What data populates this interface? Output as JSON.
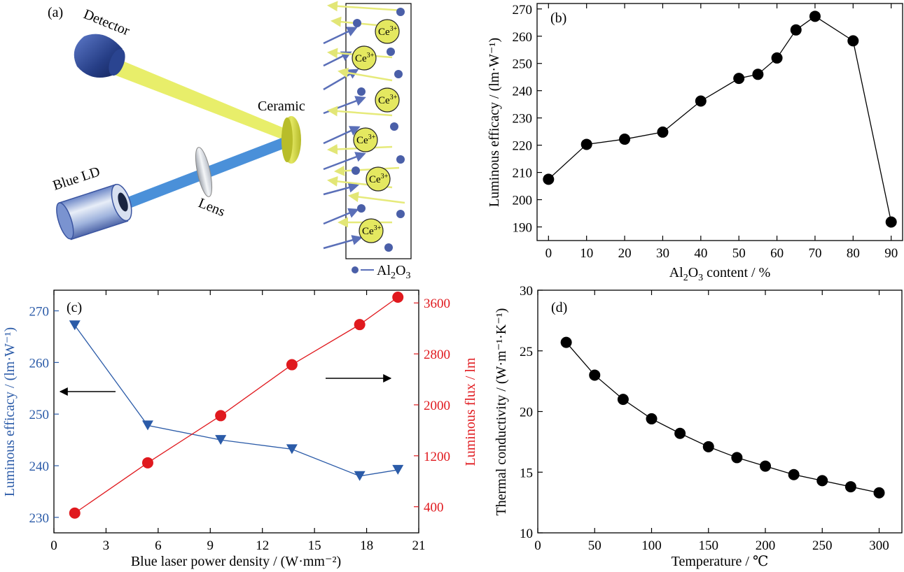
{
  "panel_a": {
    "letter": "(a)",
    "detector_label": "Detector",
    "ceramic_label": "Ceramic",
    "laser_label": "Blue LD",
    "lens_label": "Lens",
    "ion_label": "Ce",
    "ion_charge": "3+",
    "legend_formula": [
      "Al",
      "2",
      "O",
      "3"
    ],
    "colors": {
      "beam_yellow": "#e8ee6a",
      "beam_blue": "#4a90d9",
      "ion_fill": "#e4e860",
      "dot": "#4a5fa8",
      "arrow_blue": "#5a6fb8",
      "arrow_yellow": "#e6ea7a"
    }
  },
  "chart_data": [
    {
      "id": "b",
      "panel_letter": "(b)",
      "type": "line",
      "x": [
        0,
        10,
        20,
        30,
        40,
        50,
        55,
        60,
        65,
        70,
        80,
        90
      ],
      "y": [
        207.5,
        220.3,
        222.2,
        224.8,
        236.2,
        244.5,
        246.0,
        252.0,
        262.3,
        267.3,
        258.3,
        191.8
      ],
      "xlim": [
        -3,
        93
      ],
      "ylim": [
        185,
        272
      ],
      "xticks": [
        0,
        10,
        20,
        30,
        40,
        50,
        60,
        70,
        80,
        90
      ],
      "yticks": [
        190,
        200,
        210,
        220,
        230,
        240,
        250,
        260,
        270
      ],
      "xlabel": {
        "pre": "Al",
        "sub1": "2",
        "mid": "O",
        "sub2": "3",
        "post": " content / %"
      },
      "ylabel": "Luminous efficacy / (lm·W⁻¹)",
      "color": "#000000",
      "marker": "circle"
    },
    {
      "id": "c",
      "panel_letter": "(c)",
      "type": "line",
      "xlim": [
        0,
        21
      ],
      "xticks": [
        0,
        3,
        6,
        9,
        12,
        15,
        18,
        21
      ],
      "xlabel": "Blue laser power density / (W·mm⁻²)",
      "series": [
        {
          "axis": "left",
          "x": [
            1.2,
            5.4,
            9.6,
            13.7,
            17.6,
            19.8
          ],
          "y": [
            267.2,
            247.8,
            245.0,
            243.2,
            238.0,
            239.2
          ],
          "color": "#2b5ba8",
          "marker": "triangle-down"
        },
        {
          "axis": "right",
          "x": [
            1.2,
            5.4,
            9.6,
            13.7,
            17.6,
            19.8
          ],
          "y": [
            300,
            1090,
            1830,
            2630,
            3260,
            3690
          ],
          "color": "#e0191e",
          "marker": "circle"
        }
      ],
      "ylim_left": [
        227,
        274
      ],
      "yticks_left": [
        230,
        240,
        250,
        260,
        270
      ],
      "ylabel_left": "Luminous efficacy / (lm·W⁻¹)",
      "ylim_right": [
        -10,
        3800
      ],
      "yticks_right": [
        400,
        1200,
        2000,
        2800,
        3600
      ],
      "ylabel_right": "Luminous flux / lm"
    },
    {
      "id": "d",
      "panel_letter": "(d)",
      "type": "line",
      "x": [
        25,
        50,
        75,
        100,
        125,
        150,
        175,
        200,
        225,
        250,
        275,
        300
      ],
      "y": [
        25.7,
        23.0,
        21.0,
        19.4,
        18.2,
        17.1,
        16.2,
        15.5,
        14.8,
        14.3,
        13.8,
        13.3
      ],
      "xlim": [
        0,
        320
      ],
      "ylim": [
        10,
        30
      ],
      "xticks": [
        0,
        50,
        100,
        150,
        200,
        250,
        300
      ],
      "yticks": [
        10,
        15,
        20,
        25,
        30
      ],
      "xlabel": "Temperature / ℃",
      "ylabel": "Thermal conductivity / (W·m⁻¹·K⁻¹)",
      "color": "#000000",
      "marker": "circle"
    }
  ]
}
